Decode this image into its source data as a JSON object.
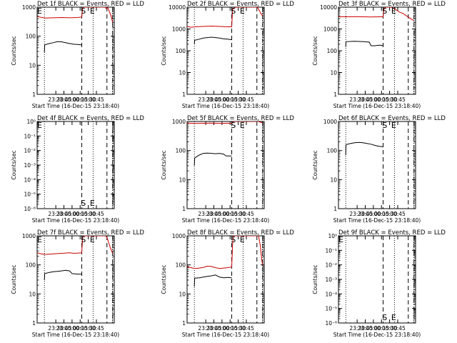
{
  "figure": {
    "xlabel": "Start Time (16-Dec-15 23:18:40)",
    "ylabel": "Counts/sec",
    "x_ticks": [
      "23:30",
      "23:45",
      "00:00",
      "00:15",
      "00:30",
      "00:45"
    ],
    "marker_labels": [
      "S",
      "E"
    ]
  },
  "colors": {
    "events": "#000000",
    "lld": "#cc0000"
  },
  "chart_data": [
    {
      "type": "line",
      "title": "Det 1f BLACK = Events, RED = LLD",
      "xlabel": "Start Time (16-Dec-15 23:18:40)",
      "ylabel": "Counts/sec",
      "x_unit": "minutes after 23:18:40",
      "xlim": [
        0,
        95
      ],
      "yscale": "log",
      "ylim": [
        1,
        1000
      ],
      "y_ticks": [
        "1",
        "10",
        "100",
        "1000"
      ],
      "markers": {
        "dotted": [
          9,
          69,
          93
        ],
        "dashed": [
          55,
          86
        ],
        "dashdot": [
          93
        ],
        "labels": [
          {
            "text": "S",
            "x": 57
          },
          {
            "text": "E",
            "x": 68
          },
          {
            "text": "E",
            "x": 0
          }
        ]
      },
      "series": [
        {
          "name": "Events",
          "points": [
            [
              9,
              28
            ],
            [
              9.3,
              50
            ],
            [
              14,
              55
            ],
            [
              20,
              60
            ],
            [
              25,
              65
            ],
            [
              30,
              64
            ],
            [
              35,
              60
            ],
            [
              40,
              56
            ],
            [
              45,
              53
            ],
            [
              50,
              52
            ],
            [
              55,
              50
            ]
          ]
        },
        {
          "name": "LLD",
          "points": [
            [
              0,
              480
            ],
            [
              2,
              460
            ],
            [
              10,
              420
            ],
            [
              20,
              430
            ],
            [
              30,
              440
            ],
            [
              40,
              430
            ],
            [
              50,
              440
            ],
            [
              55,
              460
            ],
            [
              56,
              900
            ],
            [
              57,
              1000
            ],
            [
              84,
              1000
            ],
            [
              85,
              900
            ],
            [
              87,
              980
            ],
            [
              89,
              700
            ],
            [
              91,
              500
            ],
            [
              93,
              300
            ]
          ]
        }
      ]
    },
    {
      "type": "line",
      "title": "Det 2f BLACK = Events, RED = LLD",
      "xlabel": "Start Time (16-Dec-15 23:18:40)",
      "ylabel": "Counts/sec",
      "x_unit": "minutes after 23:18:40",
      "xlim": [
        0,
        95
      ],
      "yscale": "log",
      "ylim": [
        1,
        10000
      ],
      "y_ticks": [
        "1",
        "10",
        "100",
        "1000",
        "10000"
      ],
      "markers": {
        "dotted": [
          9,
          69,
          93
        ],
        "dashed": [
          55,
          86
        ],
        "dashdot": [
          93
        ],
        "labels": [
          {
            "text": "S",
            "x": 57
          },
          {
            "text": "E",
            "x": 68
          }
        ]
      },
      "series": [
        {
          "name": "Events",
          "points": [
            [
              9,
              200
            ],
            [
              9.3,
              300
            ],
            [
              15,
              340
            ],
            [
              20,
              380
            ],
            [
              25,
              400
            ],
            [
              30,
              420
            ],
            [
              35,
              400
            ],
            [
              40,
              380
            ],
            [
              45,
              350
            ],
            [
              50,
              340
            ],
            [
              55,
              320
            ]
          ]
        },
        {
          "name": "LLD",
          "points": [
            [
              0,
              1300
            ],
            [
              5,
              1200
            ],
            [
              10,
              1250
            ],
            [
              20,
              1300
            ],
            [
              30,
              1350
            ],
            [
              40,
              1300
            ],
            [
              50,
              1250
            ],
            [
              55,
              1250
            ],
            [
              56,
              8000
            ],
            [
              60,
              10000
            ],
            [
              85,
              10000
            ],
            [
              87,
              9500
            ],
            [
              89,
              7000
            ],
            [
              91,
              5000
            ],
            [
              93,
              4000
            ]
          ]
        }
      ]
    },
    {
      "type": "line",
      "title": "Det 3f BLACK = Events, RED = LLD",
      "xlabel": "Start Time (16-Dec-15 23:18:40)",
      "ylabel": "Counts/sec",
      "x_unit": "minutes after 23:18:40",
      "xlim": [
        0,
        95
      ],
      "yscale": "log",
      "ylim": [
        1,
        10000
      ],
      "y_ticks": [
        "1",
        "10",
        "100",
        "1000",
        "10000"
      ],
      "markers": {
        "dotted": [
          9,
          69,
          93
        ],
        "dashed": [
          55,
          86
        ],
        "dashdot": [
          93
        ],
        "labels": [
          {
            "text": "S",
            "x": 57
          },
          {
            "text": "E",
            "x": 68
          }
        ]
      },
      "series": [
        {
          "name": "Events",
          "points": [
            [
              9,
              150
            ],
            [
              9.3,
              260
            ],
            [
              20,
              270
            ],
            [
              30,
              260
            ],
            [
              38,
              250
            ],
            [
              40,
              170
            ],
            [
              45,
              170
            ],
            [
              50,
              180
            ],
            [
              55,
              175
            ]
          ]
        },
        {
          "name": "LLD",
          "points": [
            [
              0,
              3700
            ],
            [
              10,
              3600
            ],
            [
              20,
              3650
            ],
            [
              30,
              3600
            ],
            [
              40,
              3550
            ],
            [
              50,
              3600
            ],
            [
              55,
              3600
            ],
            [
              56,
              8000
            ],
            [
              58,
              10000
            ],
            [
              65,
              10000
            ],
            [
              70,
              8000
            ],
            [
              75,
              6000
            ],
            [
              80,
              5000
            ],
            [
              86,
              3500
            ],
            [
              92,
              2500
            ]
          ]
        }
      ]
    },
    {
      "type": "line",
      "title": "Det 4f BLACK = Events, RED = LLD",
      "xlabel": "Start Time (16-Dec-15 23:18:40)",
      "ylabel": "Counts/sec",
      "x_unit": "minutes after 23:18:40",
      "xlim": [
        0,
        95
      ],
      "yscale": "log",
      "ylim": [
        1e-06,
        1
      ],
      "y_ticks": [
        "10⁻⁶",
        "10⁻⁵",
        "10⁻⁴",
        "10⁻³",
        "10⁻²",
        "10⁻¹",
        "10⁰"
      ],
      "markers": {
        "dotted": [
          9,
          69,
          93
        ],
        "dashed": [
          55,
          86
        ],
        "dashdot": [
          93
        ],
        "labels": [
          {
            "text": "S",
            "x": 57
          },
          {
            "text": "E",
            "x": 68
          },
          {
            "text": "E",
            "x": 0
          }
        ]
      },
      "series": []
    },
    {
      "type": "line",
      "title": "Det 5f BLACK = Events, RED = LLD",
      "xlabel": "Start Time (16-Dec-15 23:18:40)",
      "ylabel": "Counts/sec",
      "x_unit": "minutes after 23:18:40",
      "xlim": [
        0,
        95
      ],
      "yscale": "log",
      "ylim": [
        1,
        1000
      ],
      "y_ticks": [
        "1",
        "10",
        "100",
        "1000"
      ],
      "markers": {
        "dotted": [
          9,
          69,
          93
        ],
        "dashed": [
          55,
          86
        ],
        "dashdot": [
          93
        ],
        "labels": [
          {
            "text": "S",
            "x": 57
          },
          {
            "text": "E",
            "x": 68
          }
        ]
      },
      "series": [
        {
          "name": "Events",
          "points": [
            [
              9,
              30
            ],
            [
              9.3,
              55
            ],
            [
              15,
              70
            ],
            [
              20,
              80
            ],
            [
              25,
              82
            ],
            [
              30,
              80
            ],
            [
              35,
              78
            ],
            [
              40,
              80
            ],
            [
              45,
              75
            ],
            [
              48,
              65
            ],
            [
              55,
              65
            ]
          ]
        },
        {
          "name": "LLD",
          "points": [
            [
              0,
              880
            ],
            [
              10,
              860
            ],
            [
              20,
              870
            ],
            [
              30,
              880
            ],
            [
              40,
              860
            ],
            [
              50,
              870
            ],
            [
              55,
              880
            ],
            [
              56,
              950
            ],
            [
              58,
              1000
            ],
            [
              88,
              1000
            ],
            [
              90,
              950
            ],
            [
              93,
              900
            ]
          ]
        }
      ]
    },
    {
      "type": "line",
      "title": "Det 6f BLACK = Events, RED = LLD",
      "xlabel": "Start Time (16-Dec-15 23:18:40)",
      "ylabel": "Counts/sec",
      "x_unit": "minutes after 23:18:40",
      "xlim": [
        0,
        95
      ],
      "yscale": "log",
      "ylim": [
        1,
        1000
      ],
      "y_ticks": [
        "1",
        "10",
        "100",
        "1000"
      ],
      "markers": {
        "dotted": [
          9,
          69,
          93
        ],
        "dashed": [
          55,
          86
        ],
        "dashdot": [
          93
        ],
        "labels": [
          {
            "text": "S",
            "x": 57
          },
          {
            "text": "E",
            "x": 68
          }
        ]
      },
      "series": [
        {
          "name": "Events",
          "points": [
            [
              9,
              70
            ],
            [
              9.3,
              160
            ],
            [
              15,
              175
            ],
            [
              20,
              185
            ],
            [
              25,
              190
            ],
            [
              30,
              185
            ],
            [
              35,
              175
            ],
            [
              40,
              165
            ],
            [
              45,
              150
            ],
            [
              50,
              140
            ],
            [
              55,
              135
            ]
          ]
        }
      ]
    },
    {
      "type": "line",
      "title": "Det 7f BLACK = Events, RED = LLD",
      "xlabel": "Start Time (16-Dec-15 23:18:40)",
      "ylabel": "Counts/sec",
      "x_unit": "minutes after 23:18:40",
      "xlim": [
        0,
        95
      ],
      "yscale": "log",
      "ylim": [
        1,
        1000
      ],
      "y_ticks": [
        "1",
        "10",
        "100",
        "1000"
      ],
      "markers": {
        "dotted": [
          9,
          69,
          93
        ],
        "dashed": [
          55,
          86
        ],
        "dashdot": [
          93
        ],
        "labels": [
          {
            "text": "S",
            "x": 57
          },
          {
            "text": "E",
            "x": 68
          },
          {
            "text": "E",
            "x": 0
          }
        ]
      },
      "series": [
        {
          "name": "Events",
          "points": [
            [
              9,
              30
            ],
            [
              9.3,
              50
            ],
            [
              15,
              55
            ],
            [
              20,
              58
            ],
            [
              25,
              60
            ],
            [
              30,
              62
            ],
            [
              35,
              65
            ],
            [
              40,
              62
            ],
            [
              43,
              50
            ],
            [
              50,
              48
            ],
            [
              55,
              48
            ]
          ]
        },
        {
          "name": "LLD",
          "points": [
            [
              0,
              260
            ],
            [
              5,
              240
            ],
            [
              10,
              230
            ],
            [
              20,
              240
            ],
            [
              30,
              250
            ],
            [
              40,
              260
            ],
            [
              45,
              250
            ],
            [
              50,
              255
            ],
            [
              55,
              260
            ],
            [
              56,
              900
            ],
            [
              57,
              1000
            ],
            [
              84,
              1000
            ],
            [
              86,
              900
            ],
            [
              88,
              600
            ],
            [
              90,
              400
            ],
            [
              93,
              250
            ]
          ]
        }
      ]
    },
    {
      "type": "line",
      "title": "Det 8f BLACK = Events, RED = LLD",
      "xlabel": "Start Time (16-Dec-15 23:18:40)",
      "ylabel": "Counts/sec",
      "x_unit": "minutes after 23:18:40",
      "xlim": [
        0,
        95
      ],
      "yscale": "log",
      "ylim": [
        1,
        1000
      ],
      "y_ticks": [
        "1",
        "10",
        "100",
        "1000"
      ],
      "markers": {
        "dotted": [
          9,
          69,
          93
        ],
        "dashed": [
          55,
          86
        ],
        "dashdot": [
          93
        ],
        "labels": [
          {
            "text": "S",
            "x": 57
          },
          {
            "text": "E",
            "x": 68
          }
        ]
      },
      "series": [
        {
          "name": "Events",
          "points": [
            [
              9,
              18
            ],
            [
              9.3,
              35
            ],
            [
              15,
              36
            ],
            [
              20,
              38
            ],
            [
              25,
              40
            ],
            [
              30,
              42
            ],
            [
              35,
              45
            ],
            [
              40,
              38
            ],
            [
              45,
              36
            ],
            [
              50,
              37
            ],
            [
              55,
              36
            ]
          ]
        },
        {
          "name": "LLD",
          "points": [
            [
              0,
              85
            ],
            [
              5,
              80
            ],
            [
              10,
              75
            ],
            [
              15,
              78
            ],
            [
              20,
              82
            ],
            [
              25,
              90
            ],
            [
              30,
              88
            ],
            [
              35,
              80
            ],
            [
              40,
              75
            ],
            [
              45,
              78
            ],
            [
              50,
              80
            ],
            [
              55,
              85
            ],
            [
              56,
              500
            ],
            [
              57,
              1000
            ],
            [
              88,
              1000
            ],
            [
              90,
              500
            ],
            [
              92,
              150
            ],
            [
              93,
              100
            ]
          ]
        }
      ]
    },
    {
      "type": "line",
      "title": "Det 9f BLACK = Events, RED = LLD",
      "xlabel": "Start Time (16-Dec-15 23:18:40)",
      "ylabel": "Counts/sec",
      "x_unit": "minutes after 23:18:40",
      "xlim": [
        0,
        95
      ],
      "yscale": "log",
      "ylim": [
        1e-06,
        1
      ],
      "y_ticks": [
        "10⁻⁶",
        "10⁻⁵",
        "10⁻⁴",
        "10⁻³",
        "10⁻²",
        "10⁻¹",
        "10⁰"
      ],
      "markers": {
        "dotted": [
          9,
          69,
          93
        ],
        "dashed": [
          55,
          86
        ],
        "dashdot": [
          93
        ],
        "labels": [
          {
            "text": "S",
            "x": 57
          },
          {
            "text": "E",
            "x": 68
          },
          {
            "text": "E",
            "x": 0
          }
        ]
      },
      "series": []
    }
  ]
}
